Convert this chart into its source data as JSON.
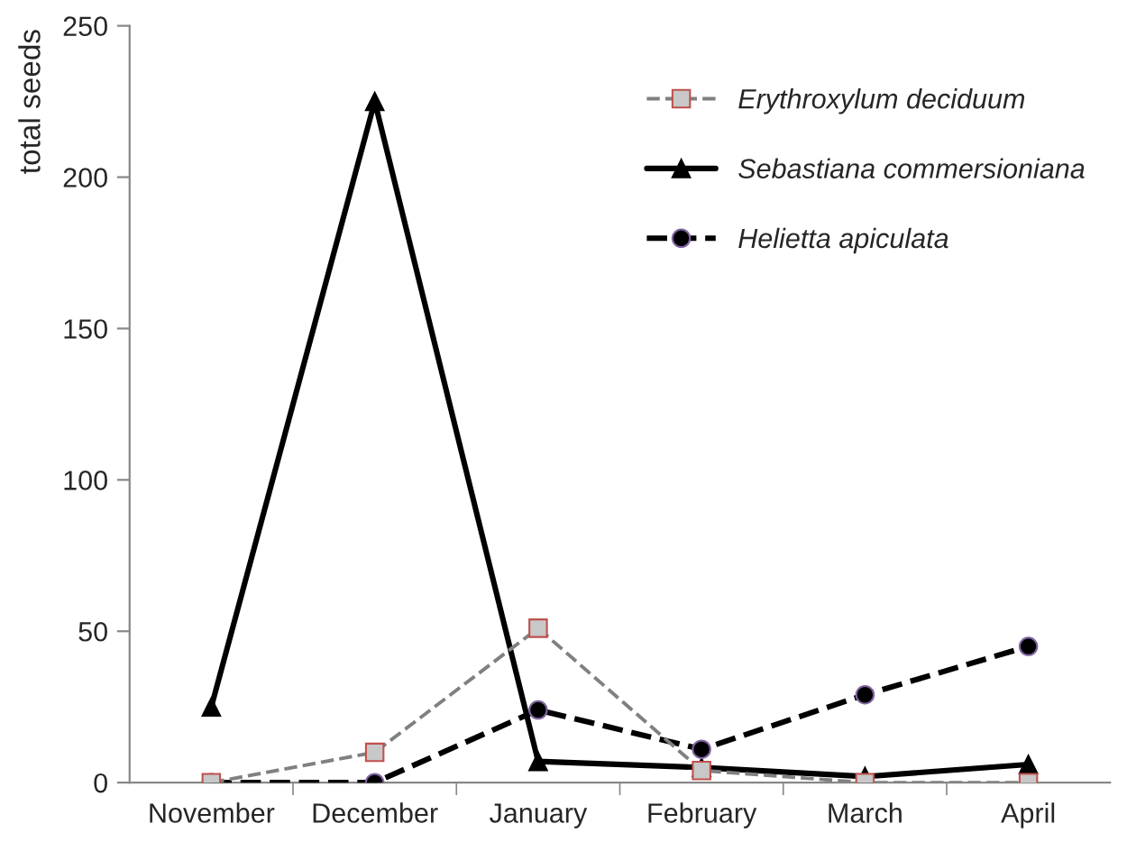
{
  "chart_data": {
    "type": "line",
    "ylabel": "total seeds",
    "categories": [
      "November",
      "December",
      "January",
      "February",
      "March",
      "April"
    ],
    "series": [
      {
        "name": "Erythroxylum deciduum",
        "color": "#808080",
        "marker": "square",
        "line_style": "dashed",
        "values": [
          0,
          10,
          51,
          4,
          0,
          0
        ]
      },
      {
        "name": "Sebastiana commersioniana",
        "color": "#000000",
        "marker": "triangle",
        "line_style": "solid",
        "values": [
          25,
          225,
          7,
          5,
          2,
          6
        ]
      },
      {
        "name": "Helietta apiculata",
        "color": "#000000",
        "marker": "circle",
        "line_style": "dashed",
        "values": [
          0,
          0,
          24,
          11,
          29,
          45
        ]
      }
    ],
    "ylim": [
      0,
      250
    ],
    "yticks": [
      0,
      50,
      100,
      150,
      200,
      250
    ],
    "grid": false,
    "legend": "top right"
  }
}
